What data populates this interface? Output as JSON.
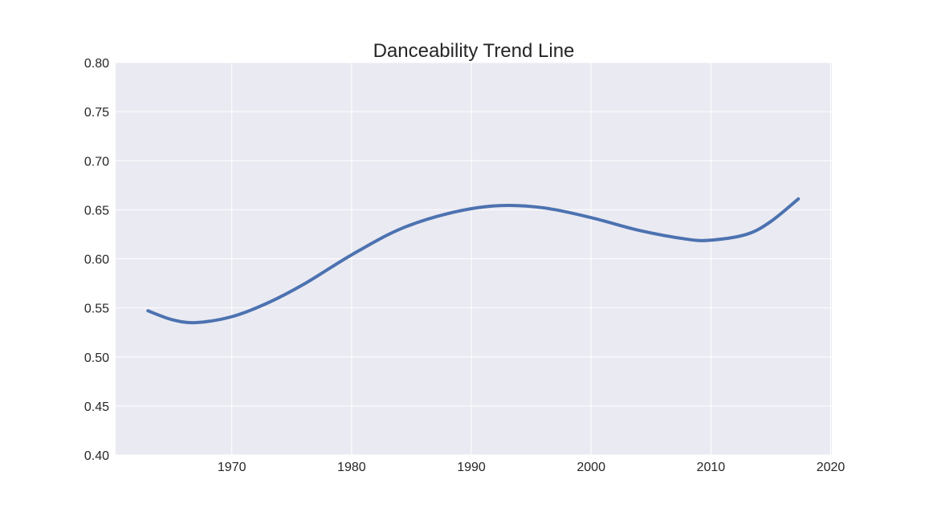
{
  "chart_data": {
    "type": "line",
    "title": "Danceability Trend Line",
    "xlabel": "",
    "ylabel": "",
    "xlim": [
      1960.3,
      2020.1
    ],
    "ylim": [
      0.4,
      0.8
    ],
    "grid": true,
    "x_ticks": [
      "1970",
      "1980",
      "1990",
      "2000",
      "2010",
      "2020"
    ],
    "y_ticks": [
      "0.40",
      "0.45",
      "0.50",
      "0.55",
      "0.60",
      "0.65",
      "0.70",
      "0.75",
      "0.80"
    ],
    "colors": {
      "background": "#eaeaf2",
      "grid": "#ffffff",
      "line": "#4c72b0"
    },
    "series": [
      {
        "x": [
          1963,
          1965,
          1967,
          1970,
          1973,
          1976,
          1980,
          1984,
          1988,
          1992,
          1996,
          2000,
          2004,
          2008,
          2010,
          2013,
          2015,
          2017.3
        ],
        "y": [
          0.547,
          0.538,
          0.535,
          0.541,
          0.555,
          0.574,
          0.604,
          0.63,
          0.646,
          0.654,
          0.652,
          0.642,
          0.629,
          0.62,
          0.619,
          0.625,
          0.638,
          0.661
        ]
      }
    ]
  }
}
